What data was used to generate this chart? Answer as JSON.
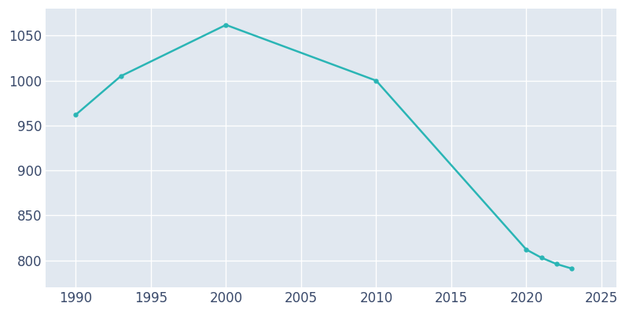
{
  "years": [
    1990,
    1993,
    2000,
    2010,
    2020,
    2021,
    2022,
    2023
  ],
  "population": [
    962,
    1005,
    1062,
    1000,
    812,
    803,
    796,
    791
  ],
  "line_color": "#2ab5b5",
  "fig_bg_color": "#ffffff",
  "plot_bg_color": "#e1e8f0",
  "grid_color": "#ffffff",
  "tick_color": "#3a4a6b",
  "xlim": [
    1988,
    2026
  ],
  "ylim": [
    770,
    1080
  ],
  "xticks": [
    1990,
    1995,
    2000,
    2005,
    2010,
    2015,
    2020,
    2025
  ],
  "yticks": [
    800,
    850,
    900,
    950,
    1000,
    1050
  ],
  "marker_size": 3.5,
  "line_width": 1.8,
  "tick_fontsize": 12
}
